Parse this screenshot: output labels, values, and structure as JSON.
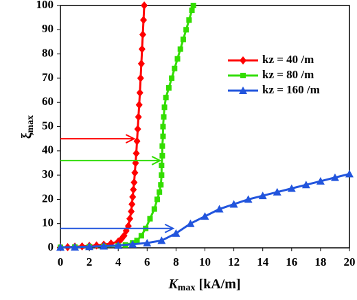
{
  "chart_data": {
    "type": "line",
    "xlabel": "K",
    "xlabel_sub": "max",
    "xlabel_unit": "[kA/m]",
    "ylabel": "ξ",
    "ylabel_sub": "max",
    "xlim": [
      0,
      20
    ],
    "xticks": [
      0,
      2,
      4,
      6,
      8,
      10,
      12,
      14,
      16,
      18,
      20
    ],
    "ylim": [
      0,
      100
    ],
    "yticks": [
      0,
      10,
      20,
      30,
      40,
      50,
      60,
      70,
      80,
      90,
      100
    ],
    "legend": "upper right",
    "series": [
      {
        "name": "kz = 40 /m",
        "color": "#ff0000",
        "marker": "diamond",
        "x": [
          0,
          0.5,
          1,
          1.5,
          2,
          2.5,
          3,
          3.5,
          4,
          4.2,
          4.4,
          4.55,
          4.7,
          4.8,
          4.9,
          4.95,
          5.0,
          5.05,
          5.1,
          5.15,
          5.2,
          5.25,
          5.3,
          5.35,
          5.4,
          5.45,
          5.5,
          5.55,
          5.6,
          5.65,
          5.7,
          5.75,
          5.8
        ],
        "values": [
          0.2,
          0.3,
          0.5,
          0.6,
          0.8,
          1,
          1.3,
          1.8,
          2.6,
          3.5,
          5,
          7,
          9,
          12,
          15,
          18,
          21,
          24,
          27,
          31,
          35,
          39,
          44,
          49,
          54,
          59,
          64,
          70,
          76,
          82,
          88,
          94,
          100
        ]
      },
      {
        "name": "kz = 80 /m",
        "color": "#33dd00",
        "marker": "square",
        "x": [
          0,
          1,
          2,
          3,
          4,
          4.5,
          5,
          5.3,
          5.6,
          5.9,
          6.2,
          6.5,
          6.7,
          6.85,
          6.95,
          7.0,
          7.0,
          7.05,
          7.05,
          7.1,
          7.1,
          7.15,
          7.2,
          7.3,
          7.5,
          7.7,
          7.9,
          8.1,
          8.3,
          8.5,
          8.7,
          8.9,
          9.1,
          9.2
        ],
        "values": [
          0.2,
          0.3,
          0.5,
          0.6,
          0.8,
          1.2,
          2,
          3,
          5,
          8,
          12,
          16,
          20,
          23,
          26,
          30,
          34,
          38,
          42,
          46,
          50,
          54,
          58,
          62,
          66,
          70,
          74,
          78,
          82,
          86,
          90,
          94,
          98,
          100
        ]
      },
      {
        "name": "kz = 160 /m",
        "color": "#2255dd",
        "marker": "triangle",
        "x": [
          0,
          1,
          2,
          3,
          4,
          5,
          6,
          7,
          8,
          9,
          10,
          11,
          12,
          13,
          14,
          15,
          16,
          17,
          18,
          19,
          20
        ],
        "values": [
          0.2,
          0.3,
          0.5,
          0.7,
          1,
          1.5,
          2,
          3,
          6,
          10,
          13,
          16,
          18,
          20,
          21.5,
          23,
          24.5,
          26,
          27.5,
          29,
          30.5
        ]
      }
    ],
    "arrows": [
      {
        "color": "#ff0000",
        "y": 45,
        "x": 5.1
      },
      {
        "color": "#33dd00",
        "y": 36,
        "x": 6.9
      },
      {
        "color": "#2255dd",
        "y": 8,
        "x": 7.8
      }
    ]
  }
}
